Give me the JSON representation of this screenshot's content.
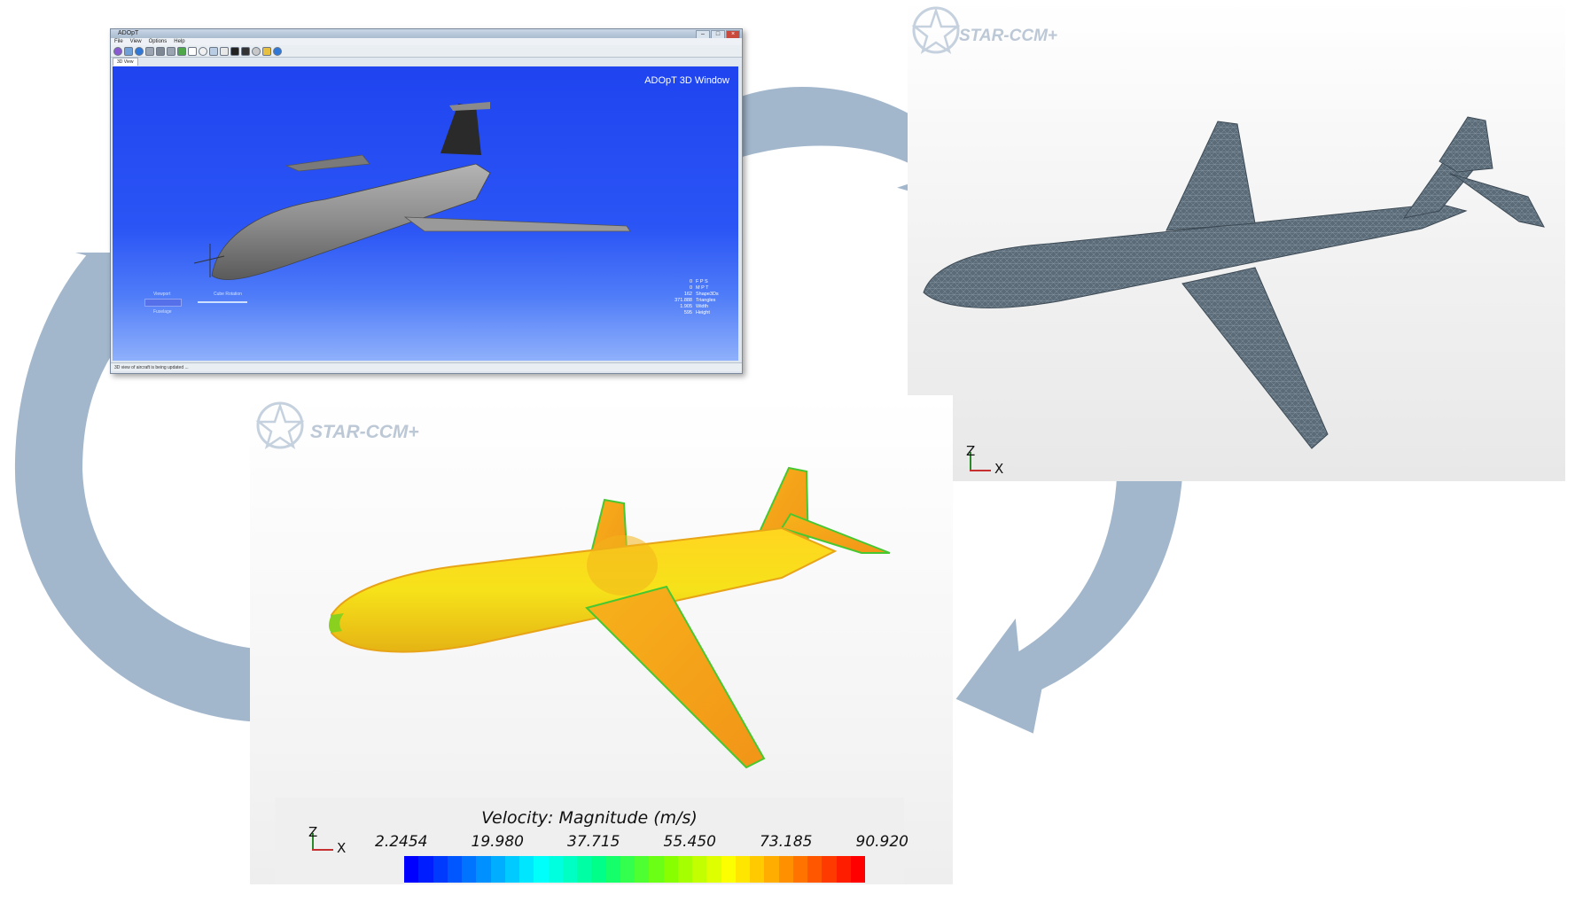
{
  "adopt_window": {
    "title": "ADOpT",
    "menu": [
      "File",
      "View",
      "Options",
      "Help"
    ],
    "tab_label": "3D View",
    "view_label": "ADOpT 3D Window",
    "viewport_label": "Viewport",
    "cube_rotation_label": "Cube Rotation",
    "fuselage_label": "Fuselage",
    "stats": [
      {
        "value": "0",
        "label": "F P S"
      },
      {
        "value": "0",
        "label": "M P T"
      },
      {
        "value": "162",
        "label": "Shape3Ds"
      },
      {
        "value": "371.888",
        "label": "Triangles"
      },
      {
        "value": "1.905",
        "label": "Width"
      },
      {
        "value": "595",
        "label": "Height"
      }
    ],
    "status_text": "3D view of aircraft is being updated ...",
    "window_buttons": [
      "–",
      "□",
      "×"
    ]
  },
  "star_top": {
    "logo_text": "STAR-CCM+",
    "axis_z": "Z",
    "axis_x": "X"
  },
  "star_bottom": {
    "logo_text": "STAR-CCM+",
    "axis_z": "Z",
    "axis_x": "X",
    "legend_title": "Velocity: Magnitude (m/s)",
    "legend_ticks": [
      "2.2454",
      "19.980",
      "37.715",
      "55.450",
      "73.185",
      "90.920"
    ],
    "colormap": [
      "#0000ff",
      "#0080ff",
      "#00ffff",
      "#00ff80",
      "#80ff00",
      "#ffff00",
      "#ff8000",
      "#ff0000"
    ]
  },
  "colors": {
    "arrow": "#a3b7cc",
    "viewport_blue": "#1f44f0",
    "mesh_gray": "#5b6b78"
  }
}
